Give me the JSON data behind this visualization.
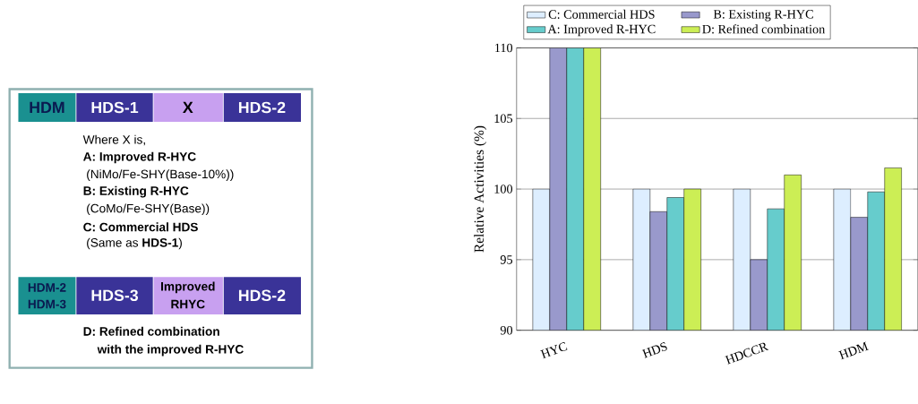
{
  "chart_data": [
    {
      "type": "other",
      "annotations": [
        "HDM",
        "HDS-1",
        "X",
        "HDS-2",
        "Where X is,",
        "A: Improved R-HYC",
        "(NiMo/Fe-SHY(Base-10%))",
        "B: Existing R-HYC",
        "(CoMo/Fe-SHY(Base))",
        "C: Commercial HDS",
        "(Same as **HDS-1**)",
        "HDM-2",
        "HDM-3",
        "HDS-3",
        "Improved",
        "RHYC",
        "HDS-2",
        "D: Refined combination",
        "with the improved R-HYC"
      ]
    },
    {
      "type": "bar",
      "ylabel": "Relative Activities (%)",
      "categories": [
        "HYC",
        "HDS",
        "HDCCR",
        "HDM"
      ],
      "series": [
        {
          "name": "C: Commercial HDS",
          "color": "#ddeeff",
          "values": [
            100,
            100,
            100,
            100
          ]
        },
        {
          "name": "B: Existing R-HYC",
          "color": "#9999cc",
          "values": [
            110,
            98.4,
            95.0,
            98.0
          ]
        },
        {
          "name": "A: Improved R-HYC",
          "color": "#66cccc",
          "values": [
            110,
            99.4,
            98.6,
            99.8
          ]
        },
        {
          "name": "D: Refined combination",
          "color": "#ccee55",
          "values": [
            110,
            100,
            101.0,
            101.5
          ]
        }
      ],
      "ylim": [
        90,
        110
      ],
      "yticks": [
        90,
        95,
        100,
        105,
        110
      ],
      "grid": "y",
      "legend": "top"
    }
  ]
}
